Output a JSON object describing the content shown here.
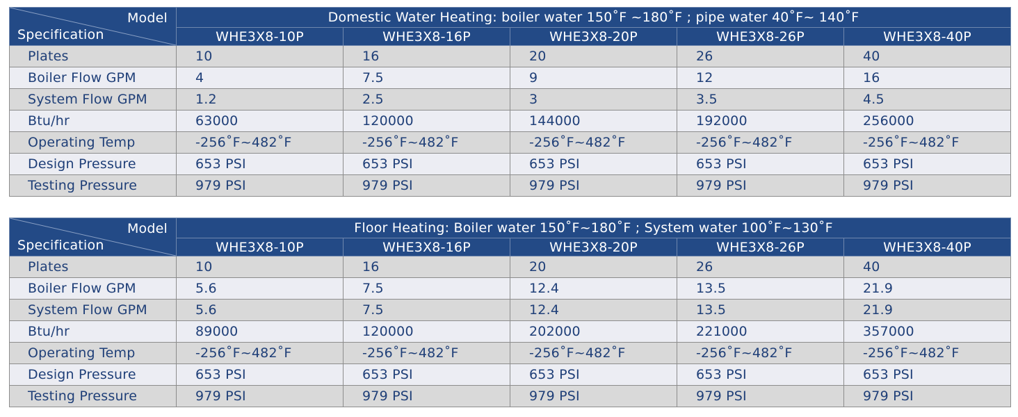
{
  "corner": {
    "model_label": "Model",
    "spec_label": "Specification"
  },
  "tables": [
    {
      "title": "Domestic Water Heating: boiler water 150˚F ~180˚F ; pipe water 40˚F~ 140˚F",
      "models": [
        "WHE3X8-10P",
        "WHE3X8-16P",
        "WHE3X8-20P",
        "WHE3X8-26P",
        "WHE3X8-40P"
      ],
      "rows": [
        {
          "label": "Plates",
          "values": [
            "10",
            "16",
            "20",
            "26",
            "40"
          ]
        },
        {
          "label": "Boiler Flow GPM",
          "values": [
            "4",
            "7.5",
            "9",
            "12",
            "16"
          ]
        },
        {
          "label": "System Flow GPM",
          "values": [
            "1.2",
            "2.5",
            "3",
            "3.5",
            "4.5"
          ]
        },
        {
          "label": "Btu/hr",
          "values": [
            "63000",
            "120000",
            "144000",
            "192000",
            "256000"
          ]
        },
        {
          "label": "Operating Temp",
          "values": [
            "-256˚F~482˚F",
            "-256˚F~482˚F",
            "-256˚F~482˚F",
            "-256˚F~482˚F",
            "-256˚F~482˚F"
          ]
        },
        {
          "label": "Design Pressure",
          "values": [
            "653 PSI",
            "653 PSI",
            "653 PSI",
            "653 PSI",
            "653 PSI"
          ]
        },
        {
          "label": "Testing Pressure",
          "values": [
            "979 PSI",
            "979 PSI",
            "979 PSI",
            "979 PSI",
            "979 PSI"
          ]
        }
      ]
    },
    {
      "title": "Floor Heating: Boiler water 150˚F~180˚F ; System water 100˚F~130˚F",
      "models": [
        "WHE3X8-10P",
        "WHE3X8-16P",
        "WHE3X8-20P",
        "WHE3X8-26P",
        "WHE3X8-40P"
      ],
      "rows": [
        {
          "label": "Plates",
          "values": [
            "10",
            "16",
            "20",
            "26",
            "40"
          ]
        },
        {
          "label": "Boiler Flow GPM",
          "values": [
            "5.6",
            "7.5",
            "12.4",
            "13.5",
            "21.9"
          ]
        },
        {
          "label": "System Flow GPM",
          "values": [
            "5.6",
            "7.5",
            "12.4",
            "13.5",
            "21.9"
          ]
        },
        {
          "label": "Btu/hr",
          "values": [
            "89000",
            "120000",
            "202000",
            "221000",
            "357000"
          ]
        },
        {
          "label": "Operating Temp",
          "values": [
            "-256˚F~482˚F",
            "-256˚F~482˚F",
            "-256˚F~482˚F",
            "-256˚F~482˚F",
            "-256˚F~482˚F"
          ]
        },
        {
          "label": "Design Pressure",
          "values": [
            "653 PSI",
            "653 PSI",
            "653 PSI",
            "653 PSI",
            "653 PSI"
          ]
        },
        {
          "label": "Testing Pressure",
          "values": [
            "979 PSI",
            "979 PSI",
            "979 PSI",
            "979 PSI",
            "979 PSI"
          ]
        }
      ]
    }
  ]
}
